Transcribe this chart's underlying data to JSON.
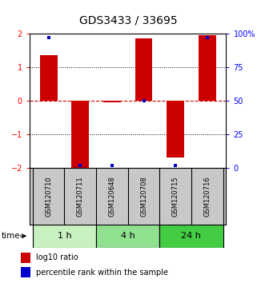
{
  "title": "GDS3433 / 33695",
  "samples": [
    "GSM120710",
    "GSM120711",
    "GSM120648",
    "GSM120708",
    "GSM120715",
    "GSM120716"
  ],
  "log10_ratios": [
    1.35,
    -2.0,
    -0.05,
    1.85,
    -1.7,
    1.95
  ],
  "percentile_ranks": [
    97,
    2,
    2,
    50,
    2,
    97
  ],
  "groups": [
    {
      "label": "1 h",
      "indices": [
        0,
        1
      ],
      "color": "#c8f0c0"
    },
    {
      "label": "4 h",
      "indices": [
        2,
        3
      ],
      "color": "#90e090"
    },
    {
      "label": "24 h",
      "indices": [
        4,
        5
      ],
      "color": "#44cc44"
    }
  ],
  "ylim": [
    -2,
    2
  ],
  "yticks_left": [
    -2,
    -1,
    0,
    1,
    2
  ],
  "yticks_right": [
    0,
    25,
    50,
    75,
    100
  ],
  "bar_color": "#cc0000",
  "dot_color": "#0000cc",
  "zero_line_color": "#cc0000",
  "bg_color": "#ffffff",
  "plot_bg_color": "#ffffff",
  "sample_panel_color": "#c8c8c8",
  "bar_width": 0.55,
  "title_fontsize": 10,
  "tick_fontsize": 7,
  "sample_fontsize": 6,
  "group_fontsize": 8,
  "legend_fontsize": 7
}
